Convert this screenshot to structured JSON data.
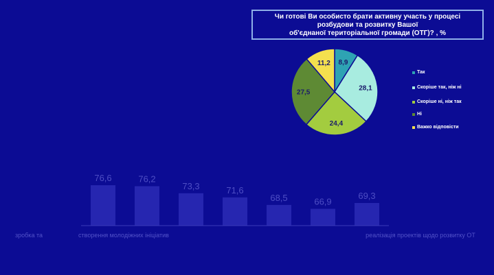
{
  "pie_chart": {
    "title_lines": [
      "Чи готові Ви особисто брати активну участь у процесі",
      "розбудови та розвитку Вашої",
      "об'єднаної територіальної громади (ОТГ)? , %"
    ]
  },
  "bar_chart": {
    "category_labels_visible": [
      "зробка та",
      "створення молодіжних ініціатив",
      "реалізація проектів щодо розвитку ОТ"
    ]
  },
  "chart_data": [
    {
      "type": "pie",
      "title": "Чи готові Ви особисто брати активну участь у процесі розбудови та розвитку Вашої об'єднаної територіальної громади (ОТГ)? , %",
      "labels": [
        "Так",
        "Скоріше так, ніж ні",
        "Скоріше ні, ніж так",
        "Ні",
        "Важко відповісти"
      ],
      "values": [
        8.9,
        28.1,
        24.4,
        27.5,
        11.2
      ],
      "value_labels": [
        "8,9",
        "28,1",
        "24,4",
        "27,5",
        "11,2"
      ],
      "colors": [
        "#2ea3b3",
        "#a8ece0",
        "#a3cc3f",
        "#5e8a34",
        "#f4e04e"
      ],
      "legend": "right"
    },
    {
      "type": "bar",
      "categories": [
        "",
        "",
        "",
        "",
        "",
        "",
        ""
      ],
      "values": [
        76.6,
        76.2,
        73.3,
        71.6,
        68.5,
        66.9,
        69.3
      ],
      "value_labels": [
        "76,6",
        "76,2",
        "73,3",
        "71,6",
        "68,5",
        "66,9",
        "69,3"
      ],
      "colors": {
        "bar": "#2626b0",
        "label": "#4e4ec4"
      }
    }
  ]
}
